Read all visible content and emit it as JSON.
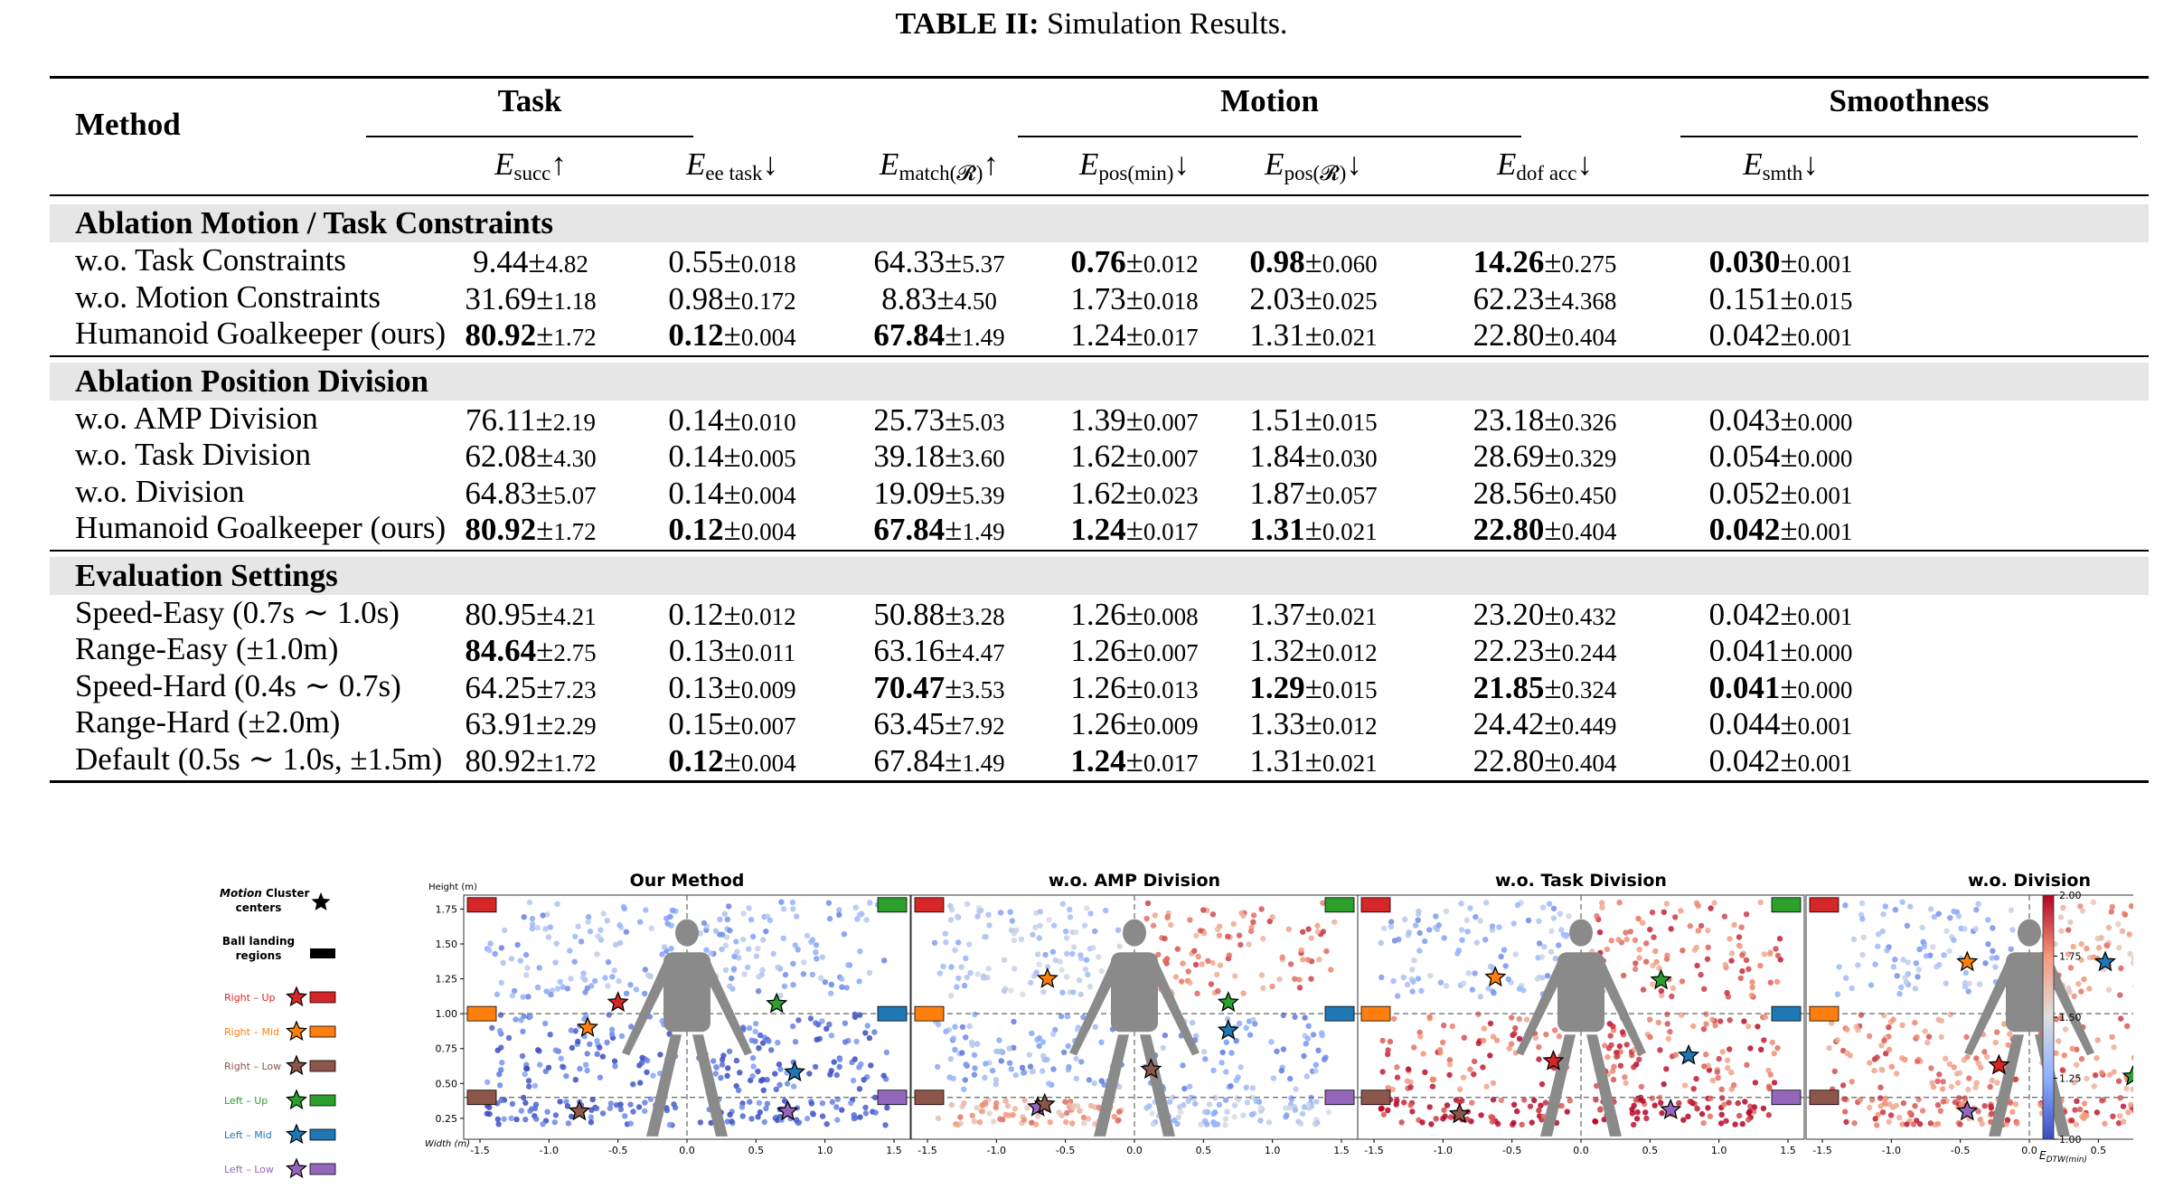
{
  "caption": {
    "label": "TABLE II:",
    "text": "Simulation Results."
  },
  "table": {
    "method_header": "Method",
    "groups": [
      "Task",
      "Motion",
      "Smoothness"
    ],
    "columns": [
      {
        "base": "E",
        "sub": "succ",
        "arrow": "↑"
      },
      {
        "base": "E",
        "sub": "ee task",
        "arrow": "↓"
      },
      {
        "base": "E",
        "sub": "match(𝓡)",
        "arrow": "↑"
      },
      {
        "base": "E",
        "sub": "pos(min)",
        "arrow": "↓"
      },
      {
        "base": "E",
        "sub": "pos(𝓡)",
        "arrow": "↓"
      },
      {
        "base": "E",
        "sub": "dof acc",
        "arrow": "↓"
      },
      {
        "base": "E",
        "sub": "smth",
        "arrow": "↓"
      }
    ],
    "sections": [
      {
        "title": "Ablation Motion / Task Constraints",
        "rows": [
          {
            "method": "w.o. Task Constraints",
            "cells": [
              [
                "9.44",
                "4.82",
                0
              ],
              [
                "0.55",
                "0.018",
                0
              ],
              [
                "64.33",
                "5.37",
                0
              ],
              [
                "0.76",
                "0.012",
                1
              ],
              [
                "0.98",
                "0.060",
                1
              ],
              [
                "14.26",
                "0.275",
                1
              ],
              [
                "0.030",
                "0.001",
                1
              ]
            ]
          },
          {
            "method": "w.o. Motion Constraints",
            "cells": [
              [
                "31.69",
                "1.18",
                0
              ],
              [
                "0.98",
                "0.172",
                0
              ],
              [
                "8.83",
                "4.50",
                0
              ],
              [
                "1.73",
                "0.018",
                0
              ],
              [
                "2.03",
                "0.025",
                0
              ],
              [
                "62.23",
                "4.368",
                0
              ],
              [
                "0.151",
                "0.015",
                0
              ]
            ]
          },
          {
            "method": "Humanoid Goalkeeper (ours)",
            "cells": [
              [
                "80.92",
                "1.72",
                1
              ],
              [
                "0.12",
                "0.004",
                1
              ],
              [
                "67.84",
                "1.49",
                1
              ],
              [
                "1.24",
                "0.017",
                0
              ],
              [
                "1.31",
                "0.021",
                0
              ],
              [
                "22.80",
                "0.404",
                0
              ],
              [
                "0.042",
                "0.001",
                0
              ]
            ]
          }
        ]
      },
      {
        "title": "Ablation Position Division",
        "rows": [
          {
            "method": "w.o. AMP Division",
            "cells": [
              [
                "76.11",
                "2.19",
                0
              ],
              [
                "0.14",
                "0.010",
                0
              ],
              [
                "25.73",
                "5.03",
                0
              ],
              [
                "1.39",
                "0.007",
                0
              ],
              [
                "1.51",
                "0.015",
                0
              ],
              [
                "23.18",
                "0.326",
                0
              ],
              [
                "0.043",
                "0.000",
                0
              ]
            ]
          },
          {
            "method": "w.o. Task Division",
            "cells": [
              [
                "62.08",
                "4.30",
                0
              ],
              [
                "0.14",
                "0.005",
                0
              ],
              [
                "39.18",
                "3.60",
                0
              ],
              [
                "1.62",
                "0.007",
                0
              ],
              [
                "1.84",
                "0.030",
                0
              ],
              [
                "28.69",
                "0.329",
                0
              ],
              [
                "0.054",
                "0.000",
                0
              ]
            ]
          },
          {
            "method": "w.o. Division",
            "cells": [
              [
                "64.83",
                "5.07",
                0
              ],
              [
                "0.14",
                "0.004",
                0
              ],
              [
                "19.09",
                "5.39",
                0
              ],
              [
                "1.62",
                "0.023",
                0
              ],
              [
                "1.87",
                "0.057",
                0
              ],
              [
                "28.56",
                "0.450",
                0
              ],
              [
                "0.052",
                "0.001",
                0
              ]
            ]
          },
          {
            "method": "Humanoid Goalkeeper (ours)",
            "cells": [
              [
                "80.92",
                "1.72",
                1
              ],
              [
                "0.12",
                "0.004",
                1
              ],
              [
                "67.84",
                "1.49",
                1
              ],
              [
                "1.24",
                "0.017",
                1
              ],
              [
                "1.31",
                "0.021",
                1
              ],
              [
                "22.80",
                "0.404",
                1
              ],
              [
                "0.042",
                "0.001",
                1
              ]
            ]
          }
        ]
      },
      {
        "title": "Evaluation Settings",
        "rows": [
          {
            "method": "Speed-Easy (0.7s ∼ 1.0s)",
            "cells": [
              [
                "80.95",
                "4.21",
                0
              ],
              [
                "0.12",
                "0.012",
                0
              ],
              [
                "50.88",
                "3.28",
                0
              ],
              [
                "1.26",
                "0.008",
                0
              ],
              [
                "1.37",
                "0.021",
                0
              ],
              [
                "23.20",
                "0.432",
                0
              ],
              [
                "0.042",
                "0.001",
                0
              ]
            ]
          },
          {
            "method": "Range-Easy (±1.0m)",
            "cells": [
              [
                "84.64",
                "2.75",
                1
              ],
              [
                "0.13",
                "0.011",
                0
              ],
              [
                "63.16",
                "4.47",
                0
              ],
              [
                "1.26",
                "0.007",
                0
              ],
              [
                "1.32",
                "0.012",
                0
              ],
              [
                "22.23",
                "0.244",
                0
              ],
              [
                "0.041",
                "0.000",
                0
              ]
            ]
          },
          {
            "method": "Speed-Hard (0.4s ∼ 0.7s)",
            "cells": [
              [
                "64.25",
                "7.23",
                0
              ],
              [
                "0.13",
                "0.009",
                0
              ],
              [
                "70.47",
                "3.53",
                1
              ],
              [
                "1.26",
                "0.013",
                0
              ],
              [
                "1.29",
                "0.015",
                1
              ],
              [
                "21.85",
                "0.324",
                1
              ],
              [
                "0.041",
                "0.000",
                1
              ]
            ]
          },
          {
            "method": "Range-Hard (±2.0m)",
            "cells": [
              [
                "63.91",
                "2.29",
                0
              ],
              [
                "0.15",
                "0.007",
                0
              ],
              [
                "63.45",
                "7.92",
                0
              ],
              [
                "1.26",
                "0.009",
                0
              ],
              [
                "1.33",
                "0.012",
                0
              ],
              [
                "24.42",
                "0.449",
                0
              ],
              [
                "0.044",
                "0.001",
                0
              ]
            ]
          },
          {
            "method": "Default (0.5s ∼ 1.0s,    ±1.5m)",
            "cells": [
              [
                "80.92",
                "1.72",
                0
              ],
              [
                "0.12",
                "0.004",
                1
              ],
              [
                "67.84",
                "1.49",
                0
              ],
              [
                "1.24",
                "0.017",
                1
              ],
              [
                "1.31",
                "0.021",
                0
              ],
              [
                "22.80",
                "0.404",
                0
              ],
              [
                "0.042",
                "0.001",
                0
              ]
            ]
          }
        ]
      }
    ]
  },
  "figure": {
    "legend": {
      "title_italic": "Motion",
      "title_rest": " Cluster",
      "title_line2": "centers",
      "landing_line1": "Ball landing",
      "landing_line2": "regions",
      "items": [
        {
          "label": "Right – Up",
          "color": "#d62728"
        },
        {
          "label": "Right – Mid",
          "color": "#ff7f0e"
        },
        {
          "label": "Right – Low",
          "color": "#8c564b"
        },
        {
          "label": "Left – Up",
          "color": "#2ca02c"
        },
        {
          "label": "Left – Mid",
          "color": "#1f77b4"
        },
        {
          "label": "Left – Low",
          "color": "#9467bd"
        }
      ]
    },
    "axis": {
      "ylabel": "Height (m)",
      "xlabel": "Width (m)",
      "yticks": [
        "1.75",
        "1.50",
        "1.25",
        "1.00",
        "0.75",
        "0.50",
        "0.25"
      ],
      "xticks": [
        "-1.5",
        "-1.0",
        "-0.5",
        "0.0",
        "0.5",
        "1.0",
        "1.5"
      ]
    },
    "panels": [
      {
        "title": "Our Method",
        "scheme": "blue",
        "stars": [
          [
            -0.5,
            1.08,
            "#d62728"
          ],
          [
            -0.72,
            0.9,
            "#ff7f0e"
          ],
          [
            -0.78,
            0.3,
            "#8c564b"
          ],
          [
            0.65,
            1.07,
            "#2ca02c"
          ],
          [
            0.78,
            0.58,
            "#1f77b4"
          ],
          [
            0.73,
            0.3,
            "#9467bd"
          ]
        ]
      },
      {
        "title": "w.o. AMP Division",
        "scheme": "mixA",
        "stars": [
          [
            -0.63,
            1.25,
            "#ff7f0e"
          ],
          [
            0.68,
            1.08,
            "#2ca02c"
          ],
          [
            0.68,
            0.88,
            "#1f77b4"
          ],
          [
            0.12,
            0.6,
            "#8c564b"
          ],
          [
            -0.7,
            0.33,
            "#9467bd"
          ],
          [
            -0.65,
            0.35,
            "#8c564b"
          ]
        ]
      },
      {
        "title": "w.o. Task Division",
        "scheme": "mixB",
        "stars": [
          [
            -0.62,
            1.26,
            "#ff7f0e"
          ],
          [
            0.58,
            1.24,
            "#2ca02c"
          ],
          [
            -0.2,
            0.66,
            "#d62728"
          ],
          [
            0.78,
            0.7,
            "#1f77b4"
          ],
          [
            -0.88,
            0.28,
            "#8c564b"
          ],
          [
            0.65,
            0.31,
            "#9467bd"
          ]
        ]
      },
      {
        "title": "w.o. Division",
        "scheme": "mixC",
        "stars": [
          [
            -0.45,
            1.37,
            "#ff7f0e"
          ],
          [
            0.55,
            1.37,
            "#1f77b4"
          ],
          [
            -0.22,
            0.63,
            "#d62728"
          ],
          [
            0.75,
            0.55,
            "#2ca02c"
          ],
          [
            -0.45,
            0.3,
            "#9467bd"
          ]
        ]
      }
    ],
    "colorbar": {
      "ticks": [
        "2.00",
        "1.75",
        "1.50",
        "1.25",
        "1.00"
      ],
      "label": "E",
      "label_sub": "DTW(min)"
    }
  }
}
